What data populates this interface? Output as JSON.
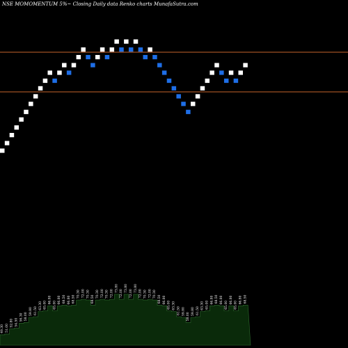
{
  "chart_data": {
    "type": "renko",
    "title": "NSE MOMOMENTUM 5%~  Closing Daily data  Renko  charts MunafaSutra.com",
    "colors": {
      "background": "#000000",
      "up_brick": "#ffffff",
      "down_brick": "#1e6ee6",
      "reference_line": "#c8642d",
      "volume_fill": "#0a2a0a",
      "volume_outline": "#2e6b2e"
    },
    "reference_lines": [
      71.4,
      62.5
    ],
    "y_range": [
      30,
      80
    ],
    "bricks": [
      {
        "dir": "up",
        "price": 49.3
      },
      {
        "dir": "up",
        "price": 51.0
      },
      {
        "dir": "up",
        "price": 52.8
      },
      {
        "dir": "up",
        "price": 54.5
      },
      {
        "dir": "up",
        "price": 56.3
      },
      {
        "dir": "up",
        "price": 58.0
      },
      {
        "dir": "up",
        "price": 59.8
      },
      {
        "dir": "up",
        "price": 61.5
      },
      {
        "dir": "up",
        "price": 63.3
      },
      {
        "dir": "up",
        "price": 65.0
      },
      {
        "dir": "up",
        "price": 66.8
      },
      {
        "dir": "down",
        "price": 65.0
      },
      {
        "dir": "up",
        "price": 66.8
      },
      {
        "dir": "up",
        "price": 68.5
      },
      {
        "dir": "down",
        "price": 66.8
      },
      {
        "dir": "up",
        "price": 68.5
      },
      {
        "dir": "up",
        "price": 70.3
      },
      {
        "dir": "up",
        "price": 72.0
      },
      {
        "dir": "down",
        "price": 70.3
      },
      {
        "dir": "down",
        "price": 68.5
      },
      {
        "dir": "up",
        "price": 70.3
      },
      {
        "dir": "up",
        "price": 72.0
      },
      {
        "dir": "down",
        "price": 70.3
      },
      {
        "dir": "up",
        "price": 72.0
      },
      {
        "dir": "up",
        "price": 73.8
      },
      {
        "dir": "down",
        "price": 72.0
      },
      {
        "dir": "up",
        "price": 73.8
      },
      {
        "dir": "down",
        "price": 72.0
      },
      {
        "dir": "up",
        "price": 73.8
      },
      {
        "dir": "down",
        "price": 72.0
      },
      {
        "dir": "down",
        "price": 70.3
      },
      {
        "dir": "up",
        "price": 72.0
      },
      {
        "dir": "down",
        "price": 70.3
      },
      {
        "dir": "down",
        "price": 68.5
      },
      {
        "dir": "down",
        "price": 66.8
      },
      {
        "dir": "down",
        "price": 65.0
      },
      {
        "dir": "down",
        "price": 63.3
      },
      {
        "dir": "down",
        "price": 61.5
      },
      {
        "dir": "down",
        "price": 59.8
      },
      {
        "dir": "down",
        "price": 58.0
      },
      {
        "dir": "up",
        "price": 59.8
      },
      {
        "dir": "up",
        "price": 61.5
      },
      {
        "dir": "up",
        "price": 63.3
      },
      {
        "dir": "up",
        "price": 65.0
      },
      {
        "dir": "up",
        "price": 66.8
      },
      {
        "dir": "up",
        "price": 68.5
      },
      {
        "dir": "down",
        "price": 66.8
      },
      {
        "dir": "down",
        "price": 65.0
      },
      {
        "dir": "up",
        "price": 66.8
      },
      {
        "dir": "down",
        "price": 65.0
      },
      {
        "dir": "up",
        "price": 66.8
      },
      {
        "dir": "up",
        "price": 68.5
      }
    ],
    "volume_labels": [
      "49.30",
      "51.00",
      "52.80",
      "54.50",
      "56.30",
      "58.00",
      "59.80",
      "61.50",
      "63.30",
      "65.00",
      "66.80",
      "65.00",
      "66.80",
      "68.50",
      "66.80",
      "68.50",
      "70.30",
      "72.00",
      "70.30",
      "68.50",
      "70.30",
      "72.00",
      "70.30",
      "72.00",
      "73.80",
      "72.00",
      "73.80",
      "72.00",
      "73.80",
      "72.00",
      "70.30",
      "72.00",
      "70.30",
      "68.50",
      "66.80",
      "65.00",
      "63.30",
      "61.50",
      "59.80",
      "58.00",
      "59.80",
      "61.50",
      "63.30",
      "65.00",
      "66.80",
      "68.50",
      "66.80",
      "65.00",
      "66.80",
      "65.00",
      "66.80",
      "68.50"
    ]
  }
}
